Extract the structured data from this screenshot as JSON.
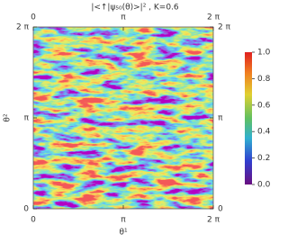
{
  "chart_data": {
    "type": "heatmap",
    "title": "|<↑|ψ₅₀(θ)>|² , K=0.6",
    "x_label": "θ¹",
    "y_label": "θ²",
    "xlim": [
      0,
      6.2832
    ],
    "ylim": [
      0,
      6.2832
    ],
    "xticks": [
      0,
      {
        "value": 3.1416,
        "label": "π"
      },
      {
        "value": 6.2832,
        "label": "2 π"
      }
    ],
    "yticks": [
      0,
      {
        "value": 3.1416,
        "label": "π"
      },
      {
        "value": 6.2832,
        "label": "2 π"
      }
    ],
    "colorbar": {
      "lim": [
        0,
        1
      ],
      "ticks": [
        {
          "value": 0,
          "label": "0.0"
        },
        {
          "value": 0.2,
          "label": "0.2"
        },
        {
          "value": 0.4,
          "label": "0.4"
        },
        {
          "value": 0.6,
          "label": "0.6"
        },
        {
          "value": 0.8,
          "label": "0.8"
        },
        {
          "value": 1,
          "label": "1.0"
        }
      ]
    }
  }
}
